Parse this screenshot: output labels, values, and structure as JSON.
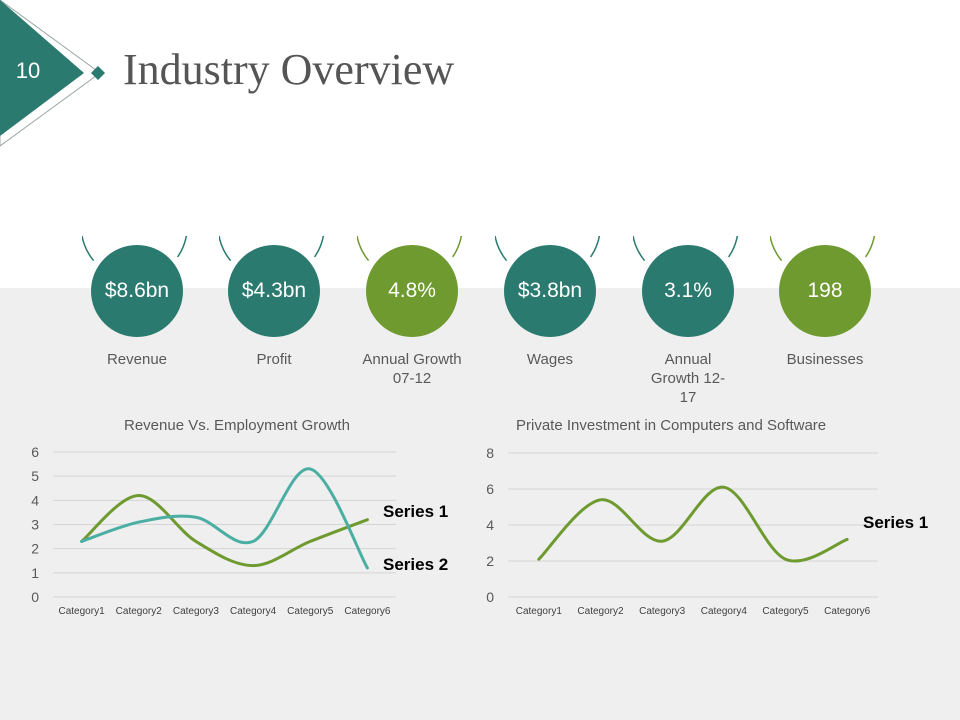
{
  "slide": {
    "number": "10",
    "title": "Industry Overview"
  },
  "colors": {
    "teal": "#2b7a6f",
    "green": "#6e9a2f",
    "teal_light": "#4aaea3",
    "text": "#595959"
  },
  "kpis": [
    {
      "value": "$8.6bn",
      "label": "Revenue",
      "color": "#2b7a6f"
    },
    {
      "value": "$4.3bn",
      "label": "Profit",
      "color": "#2b7a6f"
    },
    {
      "value": "4.8%",
      "label": "Annual Growth 07-12",
      "color": "#6e9a2f"
    },
    {
      "value": "$3.8bn",
      "label": "Wages",
      "color": "#2b7a6f"
    },
    {
      "value": "3.1%",
      "label": "Annual Growth 12-17",
      "color": "#2b7a6f"
    },
    {
      "value": "198",
      "label": "Businesses",
      "color": "#6e9a2f"
    }
  ],
  "chart_data": [
    {
      "type": "line",
      "title": "Revenue Vs. Employment Growth",
      "categories": [
        "Category1",
        "Category2",
        "Category3",
        "Category4",
        "Category5",
        "Category6"
      ],
      "series": [
        {
          "name": "Series 1",
          "values": [
            2.3,
            4.2,
            2.3,
            1.3,
            2.3,
            3.2
          ],
          "color": "#6e9a2f"
        },
        {
          "name": "Series 2",
          "values": [
            2.3,
            3.1,
            3.3,
            2.3,
            5.3,
            1.2
          ],
          "color": "#4aaea3"
        }
      ],
      "ylim": [
        0,
        6
      ],
      "yticks": [
        0,
        1,
        2,
        3,
        4,
        5,
        6
      ],
      "grid": true,
      "legend": "right"
    },
    {
      "type": "line",
      "title": "Private Investment in Computers and Software",
      "categories": [
        "Category1",
        "Category2",
        "Category3",
        "Category4",
        "Category5",
        "Category6"
      ],
      "series": [
        {
          "name": "Series 1",
          "values": [
            2.1,
            5.4,
            3.1,
            6.1,
            2.1,
            3.2
          ],
          "color": "#6e9a2f"
        }
      ],
      "ylim": [
        0,
        8
      ],
      "yticks": [
        0,
        2,
        4,
        6,
        8
      ],
      "grid": true,
      "legend": "right"
    }
  ]
}
